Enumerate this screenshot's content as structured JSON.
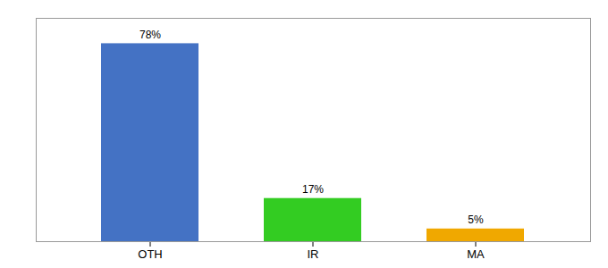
{
  "chart_data": {
    "type": "bar",
    "categories": [
      "OTH",
      "IR",
      "MA"
    ],
    "values": [
      78,
      17,
      5
    ],
    "value_labels": [
      "78%",
      "17%",
      "5%"
    ],
    "colors": [
      "#4472c4",
      "#33cc22",
      "#f0a800"
    ],
    "ylim": [
      0,
      88
    ],
    "data_labels": true,
    "tick_labels": "x"
  }
}
